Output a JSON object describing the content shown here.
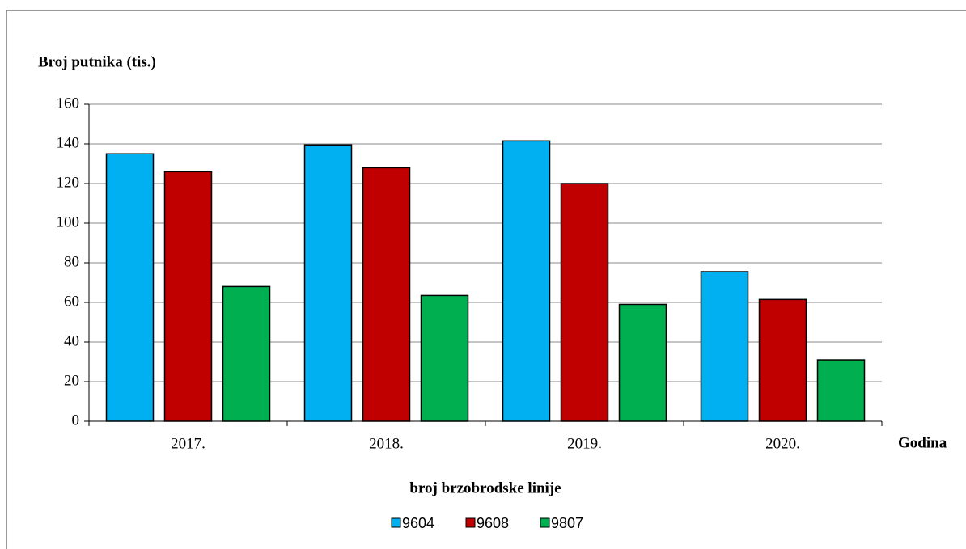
{
  "chart_data": {
    "type": "bar",
    "y_axis_label": "Broj putnika (tis.)",
    "x_axis_label": "Godina",
    "legend_title": "broj brzobrodske linije",
    "categories": [
      "2017.",
      "2018.",
      "2019.",
      "2020."
    ],
    "series": [
      {
        "name": "9604",
        "color": "#00b0f0",
        "values": [
          135,
          139.5,
          141.5,
          75.5
        ]
      },
      {
        "name": "9608",
        "color": "#c00000",
        "values": [
          126,
          128,
          120,
          61.5
        ]
      },
      {
        "name": "9807",
        "color": "#00b050",
        "values": [
          68,
          63.5,
          59,
          31
        ]
      }
    ],
    "ylim": [
      0,
      160
    ],
    "yticks": [
      0,
      20,
      40,
      60,
      80,
      100,
      120,
      140,
      160
    ],
    "grid": true
  }
}
